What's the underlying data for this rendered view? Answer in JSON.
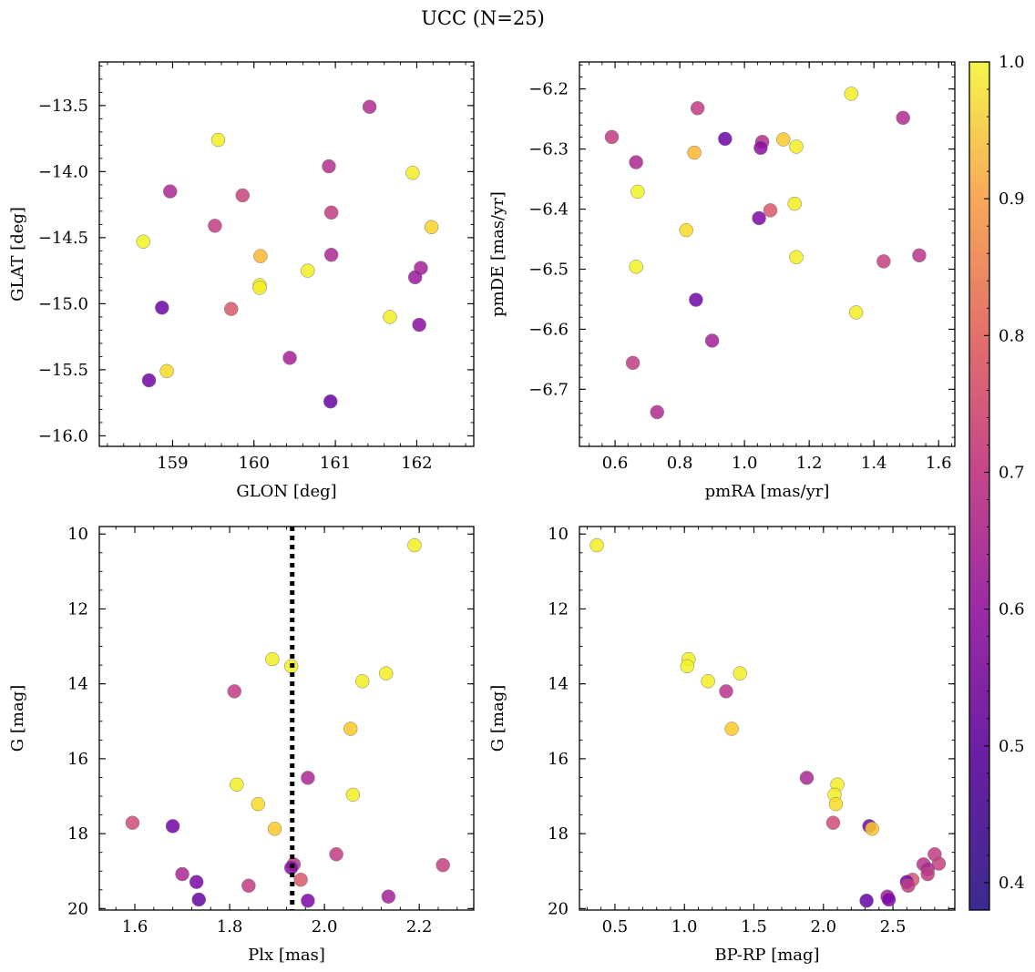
{
  "figure": {
    "title": "UCC (N=25)"
  },
  "colorbar": {
    "min": 0.38,
    "max": 1.0,
    "ticks": [
      0.4,
      0.5,
      0.6,
      0.7,
      0.8,
      0.9,
      1.0
    ],
    "tick_labels": [
      "0.4",
      "0.5",
      "0.6",
      "0.7",
      "0.8",
      "0.9",
      "1.0"
    ],
    "colormap": "plasma"
  },
  "chart_data": [
    {
      "type": "scatter",
      "id": "glon-glat",
      "xlabel": "GLON [deg]",
      "ylabel": "GLAT [deg]",
      "xlim": [
        158.1,
        162.7
      ],
      "ylim": [
        -16.08,
        -13.17
      ],
      "xticks": [
        159,
        160,
        161,
        162
      ],
      "xtick_labels": [
        "159",
        "160",
        "161",
        "162"
      ],
      "yticks": [
        -16.0,
        -15.5,
        -15.0,
        -14.5,
        -14.0,
        -13.5
      ],
      "ytick_labels": [
        "−16.0",
        "−15.5",
        "−15.0",
        "−14.5",
        "−14.0",
        "−13.5"
      ],
      "points": [
        {
          "x": 161.42,
          "y": -13.51,
          "c": 0.58
        },
        {
          "x": 159.56,
          "y": -13.76,
          "c": 0.98
        },
        {
          "x": 160.92,
          "y": -13.96,
          "c": 0.59
        },
        {
          "x": 161.95,
          "y": -14.01,
          "c": 0.98
        },
        {
          "x": 158.97,
          "y": -14.15,
          "c": 0.57
        },
        {
          "x": 159.86,
          "y": -14.18,
          "c": 0.64
        },
        {
          "x": 160.95,
          "y": -14.31,
          "c": 0.62
        },
        {
          "x": 159.52,
          "y": -14.41,
          "c": 0.62
        },
        {
          "x": 162.18,
          "y": -14.42,
          "c": 0.94
        },
        {
          "x": 158.64,
          "y": -14.53,
          "c": 0.99
        },
        {
          "x": 160.95,
          "y": -14.63,
          "c": 0.57
        },
        {
          "x": 160.08,
          "y": -14.64,
          "c": 0.89
        },
        {
          "x": 162.05,
          "y": -14.73,
          "c": 0.55
        },
        {
          "x": 160.66,
          "y": -14.75,
          "c": 0.98
        },
        {
          "x": 161.98,
          "y": -14.8,
          "c": 0.53
        },
        {
          "x": 160.07,
          "y": -14.86,
          "c": 0.99
        },
        {
          "x": 160.07,
          "y": -14.88,
          "c": 0.98
        },
        {
          "x": 158.87,
          "y": -15.03,
          "c": 0.44
        },
        {
          "x": 159.72,
          "y": -15.04,
          "c": 0.69
        },
        {
          "x": 161.67,
          "y": -15.1,
          "c": 0.98
        },
        {
          "x": 162.03,
          "y": -15.16,
          "c": 0.5
        },
        {
          "x": 160.44,
          "y": -15.41,
          "c": 0.55
        },
        {
          "x": 158.93,
          "y": -15.51,
          "c": 0.95
        },
        {
          "x": 158.71,
          "y": -15.58,
          "c": 0.45
        },
        {
          "x": 160.94,
          "y": -15.74,
          "c": 0.43
        }
      ]
    },
    {
      "type": "scatter",
      "id": "pmra-pmde",
      "xlabel": "pmRA [mas/yr]",
      "ylabel": "pmDE [mas/yr]",
      "xlim": [
        0.49,
        1.65
      ],
      "ylim": [
        -6.795,
        -6.155
      ],
      "xticks": [
        0.6,
        0.8,
        1.0,
        1.2,
        1.4,
        1.6
      ],
      "xtick_labels": [
        "0.6",
        "0.8",
        "1.0",
        "1.2",
        "1.4",
        "1.6"
      ],
      "yticks": [
        -6.7,
        -6.6,
        -6.5,
        -6.4,
        -6.3,
        -6.2
      ],
      "ytick_labels": [
        "−6.7",
        "−6.6",
        "−6.5",
        "−6.4",
        "−6.3",
        "−6.2"
      ],
      "points": [
        {
          "x": 1.33,
          "y": -6.208,
          "c": 0.98
        },
        {
          "x": 0.855,
          "y": -6.232,
          "c": 0.62
        },
        {
          "x": 1.49,
          "y": -6.248,
          "c": 0.58
        },
        {
          "x": 0.59,
          "y": -6.28,
          "c": 0.62
        },
        {
          "x": 0.94,
          "y": -6.283,
          "c": 0.44
        },
        {
          "x": 1.12,
          "y": -6.284,
          "c": 0.92
        },
        {
          "x": 1.055,
          "y": -6.288,
          "c": 0.59
        },
        {
          "x": 1.16,
          "y": -6.296,
          "c": 0.98
        },
        {
          "x": 1.05,
          "y": -6.298,
          "c": 0.5
        },
        {
          "x": 0.845,
          "y": -6.306,
          "c": 0.89
        },
        {
          "x": 0.665,
          "y": -6.322,
          "c": 0.57
        },
        {
          "x": 0.67,
          "y": -6.371,
          "c": 0.99
        },
        {
          "x": 1.155,
          "y": -6.391,
          "c": 0.98
        },
        {
          "x": 1.08,
          "y": -6.402,
          "c": 0.69
        },
        {
          "x": 1.045,
          "y": -6.415,
          "c": 0.48
        },
        {
          "x": 0.82,
          "y": -6.435,
          "c": 0.95
        },
        {
          "x": 1.54,
          "y": -6.477,
          "c": 0.6
        },
        {
          "x": 1.16,
          "y": -6.48,
          "c": 0.98
        },
        {
          "x": 1.43,
          "y": -6.487,
          "c": 0.63
        },
        {
          "x": 0.665,
          "y": -6.496,
          "c": 0.99
        },
        {
          "x": 0.85,
          "y": -6.551,
          "c": 0.45
        },
        {
          "x": 1.345,
          "y": -6.572,
          "c": 0.98
        },
        {
          "x": 0.9,
          "y": -6.619,
          "c": 0.55
        },
        {
          "x": 0.655,
          "y": -6.656,
          "c": 0.62
        },
        {
          "x": 0.73,
          "y": -6.738,
          "c": 0.58
        }
      ]
    },
    {
      "type": "scatter",
      "id": "plx-g",
      "xlabel": "Plx [mas]",
      "ylabel": "G [mag]",
      "xlim": [
        1.525,
        2.315
      ],
      "ylim": [
        20.04,
        9.8
      ],
      "y_inverted": true,
      "vline": {
        "x": 1.932,
        "style": "dotted"
      },
      "xticks": [
        1.6,
        1.8,
        2.0,
        2.2
      ],
      "xtick_labels": [
        "1.6",
        "1.8",
        "2.0",
        "2.2"
      ],
      "yticks": [
        10,
        12,
        14,
        16,
        18,
        20
      ],
      "ytick_labels": [
        "10",
        "12",
        "14",
        "16",
        "18",
        "20"
      ],
      "points": [
        {
          "x": 2.19,
          "y": 10.3,
          "c": 0.98
        },
        {
          "x": 1.89,
          "y": 13.34,
          "c": 0.98
        },
        {
          "x": 1.93,
          "y": 13.53,
          "c": 0.99
        },
        {
          "x": 2.13,
          "y": 13.72,
          "c": 0.98
        },
        {
          "x": 2.08,
          "y": 13.93,
          "c": 0.98
        },
        {
          "x": 1.81,
          "y": 14.2,
          "c": 0.62
        },
        {
          "x": 2.055,
          "y": 15.2,
          "c": 0.92
        },
        {
          "x": 1.965,
          "y": 16.51,
          "c": 0.57
        },
        {
          "x": 1.815,
          "y": 16.69,
          "c": 0.98
        },
        {
          "x": 2.06,
          "y": 16.96,
          "c": 0.98
        },
        {
          "x": 1.86,
          "y": 17.21,
          "c": 0.95
        },
        {
          "x": 1.595,
          "y": 17.71,
          "c": 0.66
        },
        {
          "x": 1.68,
          "y": 17.8,
          "c": 0.45
        },
        {
          "x": 1.895,
          "y": 17.87,
          "c": 0.92
        },
        {
          "x": 2.025,
          "y": 18.55,
          "c": 0.62
        },
        {
          "x": 1.935,
          "y": 18.82,
          "c": 0.6
        },
        {
          "x": 2.25,
          "y": 18.84,
          "c": 0.63
        },
        {
          "x": 1.93,
          "y": 18.91,
          "c": 0.5
        },
        {
          "x": 1.7,
          "y": 19.08,
          "c": 0.57
        },
        {
          "x": 1.95,
          "y": 19.23,
          "c": 0.69
        },
        {
          "x": 1.73,
          "y": 19.29,
          "c": 0.47
        },
        {
          "x": 1.84,
          "y": 19.39,
          "c": 0.62
        },
        {
          "x": 2.135,
          "y": 19.68,
          "c": 0.55
        },
        {
          "x": 1.735,
          "y": 19.76,
          "c": 0.43
        },
        {
          "x": 1.965,
          "y": 19.79,
          "c": 0.47
        }
      ]
    },
    {
      "type": "scatter",
      "id": "bprp-g",
      "xlabel": "BP-RP [mag]",
      "ylabel": "G [mag]",
      "xlim": [
        0.245,
        2.945
      ],
      "ylim": [
        20.04,
        9.8
      ],
      "y_inverted": true,
      "xticks": [
        0.5,
        1.0,
        1.5,
        2.0,
        2.5
      ],
      "xtick_labels": [
        "0.5",
        "1.0",
        "1.5",
        "2.0",
        "2.5"
      ],
      "yticks": [
        10,
        12,
        14,
        16,
        18,
        20
      ],
      "ytick_labels": [
        "10",
        "12",
        "14",
        "16",
        "18",
        "20"
      ],
      "points": [
        {
          "x": 0.37,
          "y": 10.3,
          "c": 0.98
        },
        {
          "x": 1.03,
          "y": 13.34,
          "c": 0.98
        },
        {
          "x": 1.02,
          "y": 13.53,
          "c": 0.99
        },
        {
          "x": 1.4,
          "y": 13.72,
          "c": 0.98
        },
        {
          "x": 1.17,
          "y": 13.93,
          "c": 0.98
        },
        {
          "x": 1.3,
          "y": 14.2,
          "c": 0.6
        },
        {
          "x": 1.34,
          "y": 15.2,
          "c": 0.92
        },
        {
          "x": 1.88,
          "y": 16.51,
          "c": 0.57
        },
        {
          "x": 2.1,
          "y": 16.69,
          "c": 0.98
        },
        {
          "x": 2.08,
          "y": 16.96,
          "c": 0.98
        },
        {
          "x": 2.09,
          "y": 17.21,
          "c": 0.95
        },
        {
          "x": 2.07,
          "y": 17.71,
          "c": 0.66
        },
        {
          "x": 2.33,
          "y": 17.8,
          "c": 0.45
        },
        {
          "x": 2.35,
          "y": 17.87,
          "c": 0.92
        },
        {
          "x": 2.8,
          "y": 18.55,
          "c": 0.62
        },
        {
          "x": 2.72,
          "y": 18.82,
          "c": 0.6
        },
        {
          "x": 2.83,
          "y": 18.8,
          "c": 0.63
        },
        {
          "x": 2.75,
          "y": 18.95,
          "c": 0.57
        },
        {
          "x": 2.75,
          "y": 19.08,
          "c": 0.62
        },
        {
          "x": 2.64,
          "y": 19.23,
          "c": 0.69
        },
        {
          "x": 2.6,
          "y": 19.29,
          "c": 0.47
        },
        {
          "x": 2.61,
          "y": 19.39,
          "c": 0.62
        },
        {
          "x": 2.46,
          "y": 19.68,
          "c": 0.55
        },
        {
          "x": 2.31,
          "y": 19.79,
          "c": 0.43
        },
        {
          "x": 2.47,
          "y": 19.76,
          "c": 0.47
        }
      ]
    }
  ]
}
